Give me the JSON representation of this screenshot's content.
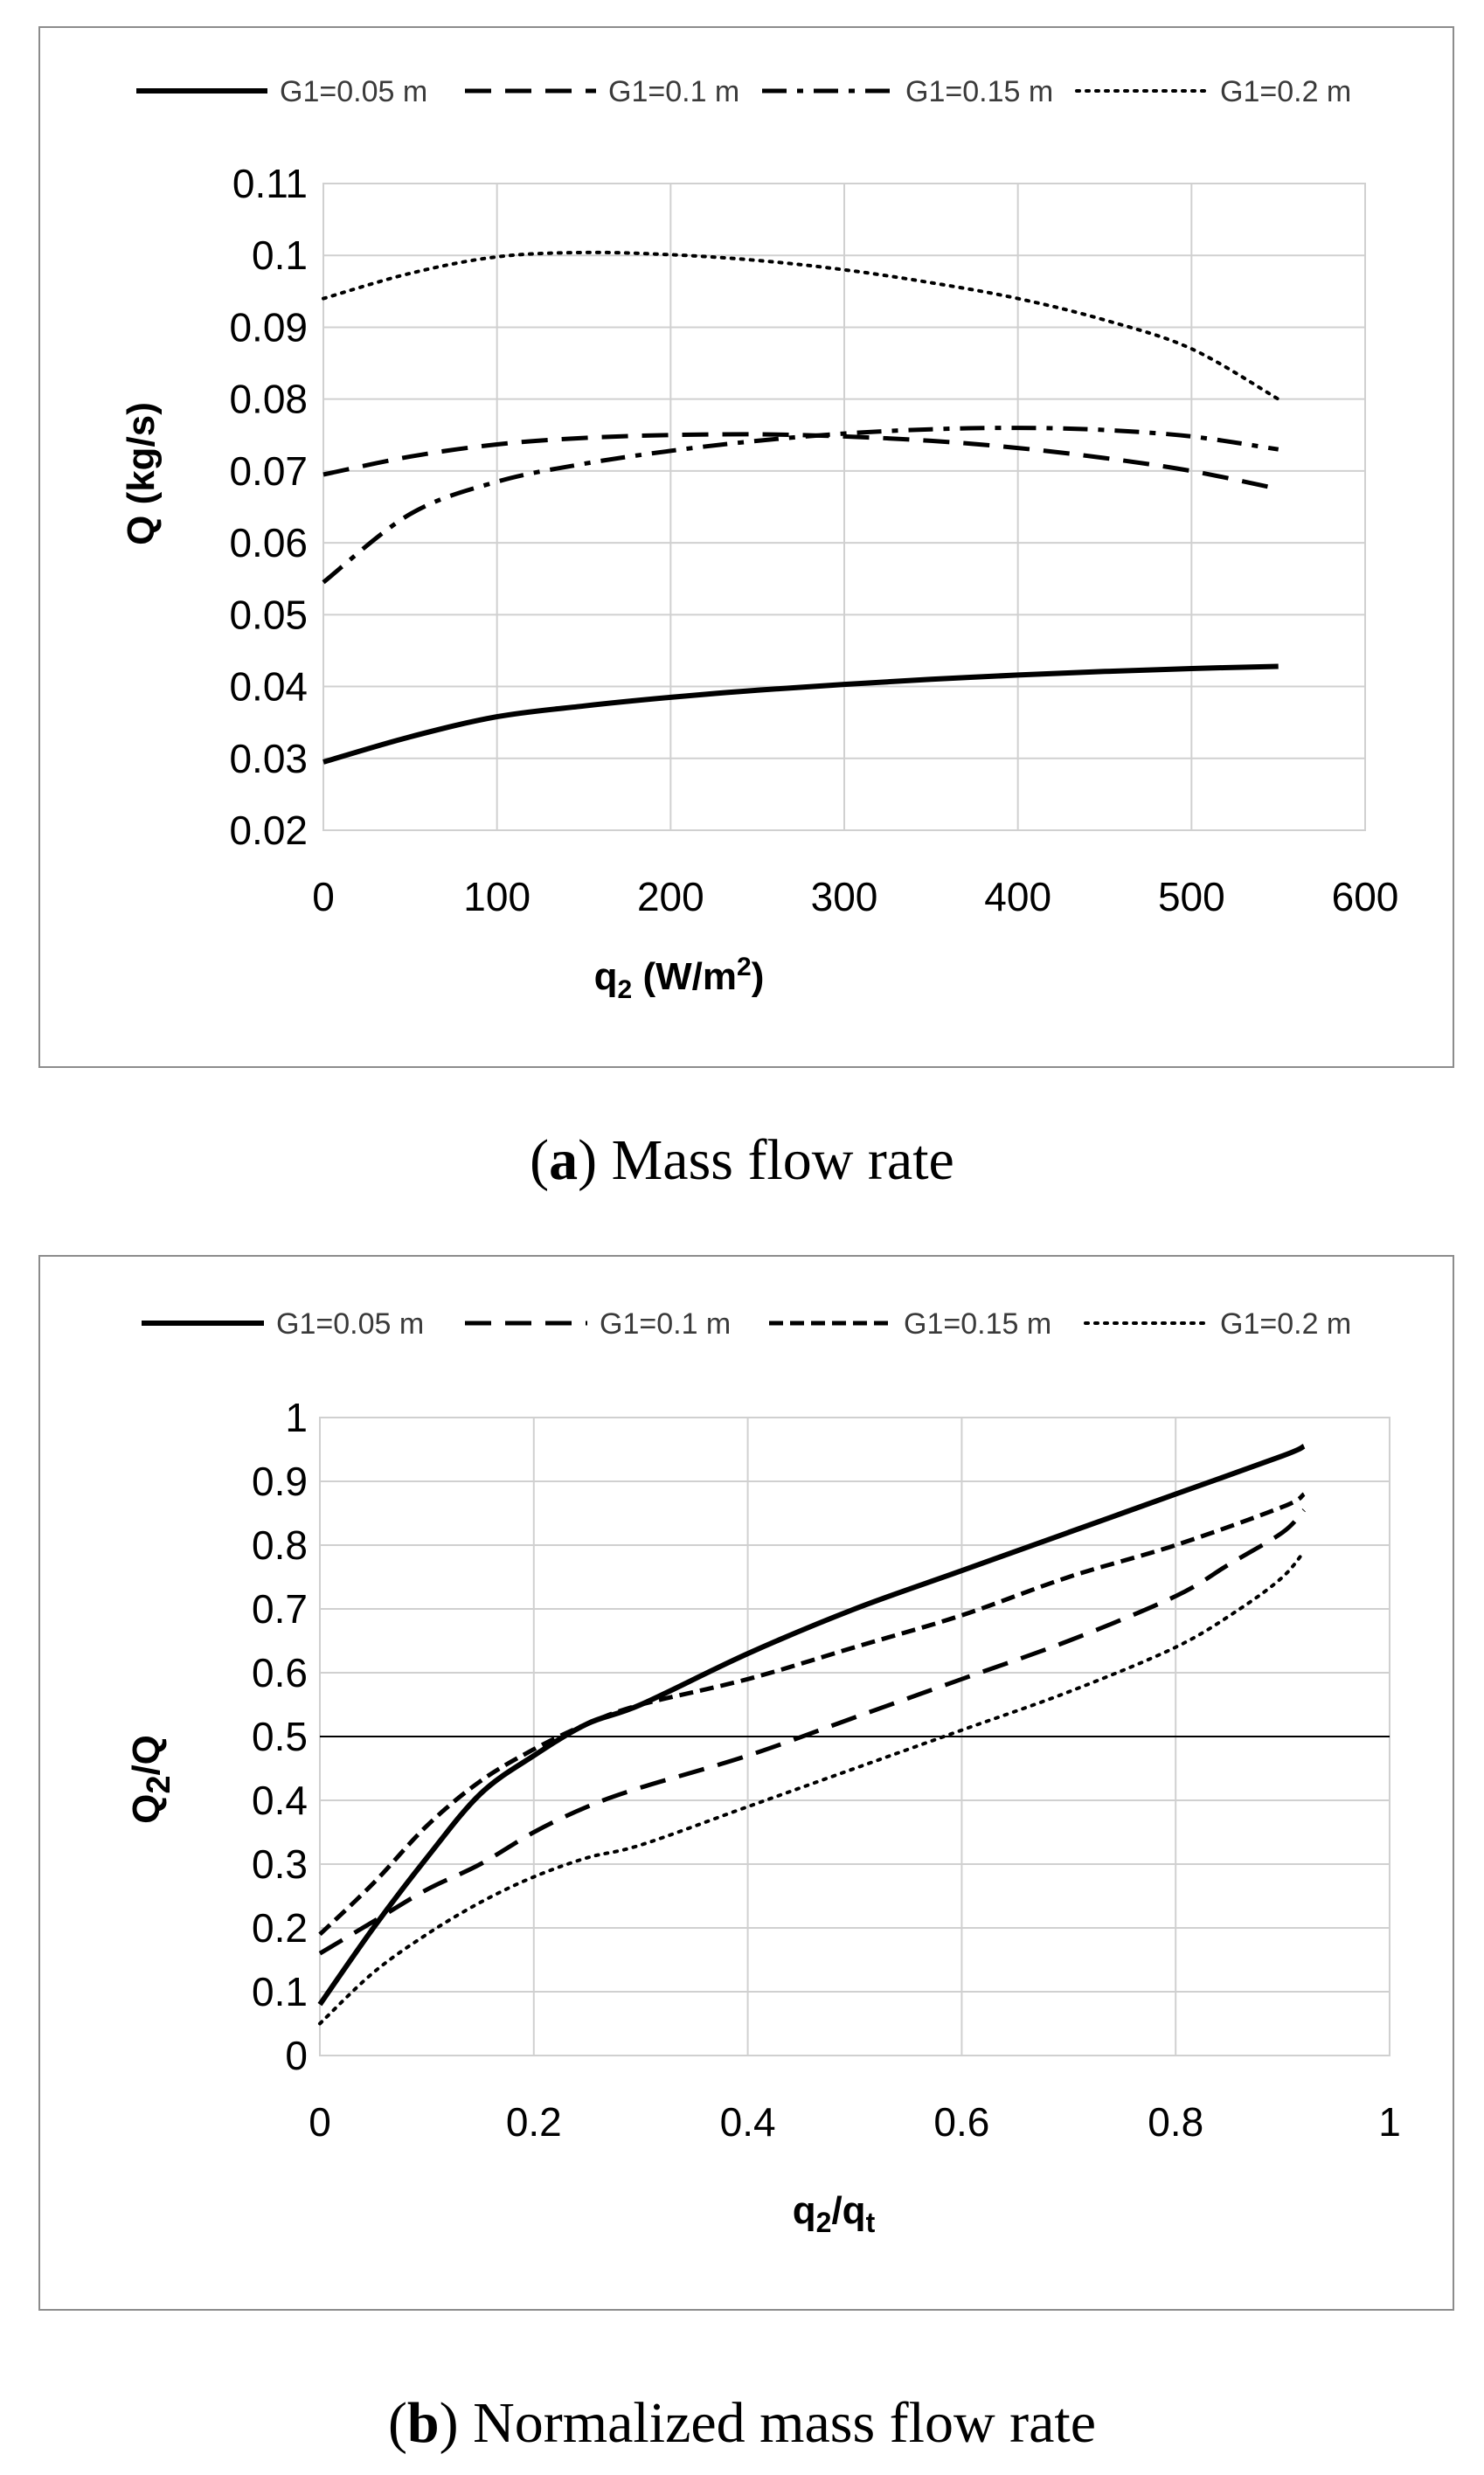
{
  "chart_data": [
    {
      "type": "line",
      "panel_label": "a",
      "caption_text": "Mass flow rate",
      "ylabel": "Q (kg/s)",
      "xlabel_main": "q",
      "xlabel_sub": "2",
      "xlabel_tail": " (W/m",
      "xlabel_sup": "2",
      "xlabel_close": ")",
      "xlim": [
        0,
        600
      ],
      "ylim": [
        0.02,
        0.11
      ],
      "xticks": [
        "0",
        "100",
        "200",
        "300",
        "400",
        "500",
        "600"
      ],
      "yticks": [
        "0.02",
        "0.03",
        "0.04",
        "0.05",
        "0.06",
        "0.07",
        "0.08",
        "0.09",
        "0.1",
        "0.11"
      ],
      "legend_position": "top",
      "series": [
        {
          "name": "G1=0.05 m",
          "style": "solid",
          "color": "#000000",
          "x": [
            0,
            50,
            100,
            150,
            200,
            250,
            300,
            350,
            400,
            450,
            500,
            550
          ],
          "y": [
            0.0295,
            0.033,
            0.0358,
            0.0373,
            0.0385,
            0.0395,
            0.0403,
            0.041,
            0.0416,
            0.0421,
            0.0425,
            0.0428
          ]
        },
        {
          "name": "G1=0.1 m",
          "style": "dash",
          "color": "#000000",
          "x": [
            0,
            50,
            100,
            150,
            200,
            250,
            300,
            350,
            400,
            450,
            500,
            550
          ],
          "y": [
            0.0695,
            0.072,
            0.0737,
            0.0746,
            0.075,
            0.0751,
            0.0748,
            0.0742,
            0.0732,
            0.0718,
            0.07,
            0.0675
          ]
        },
        {
          "name": "G1=0.15 m",
          "style": "dashdot",
          "color": "#000000",
          "x": [
            0,
            50,
            100,
            150,
            200,
            250,
            300,
            350,
            400,
            450,
            500,
            550
          ],
          "y": [
            0.0545,
            0.064,
            0.0685,
            0.071,
            0.0728,
            0.0742,
            0.0752,
            0.0758,
            0.076,
            0.0757,
            0.0748,
            0.073
          ]
        },
        {
          "name": "G1=0.2 m",
          "style": "dot",
          "color": "#000000",
          "x": [
            0,
            50,
            100,
            150,
            200,
            250,
            300,
            350,
            400,
            450,
            500,
            550
          ],
          "y": [
            0.094,
            0.0975,
            0.0998,
            0.1004,
            0.1001,
            0.0993,
            0.098,
            0.0962,
            0.094,
            0.091,
            0.087,
            0.08
          ]
        }
      ]
    },
    {
      "type": "line",
      "panel_label": "b",
      "caption_text": "Normalized mass flow rate",
      "ylabel_main": "Q",
      "ylabel_sub": "2",
      "ylabel_tail": "/Q",
      "xlabel_main": "q",
      "xlabel_sub": "2",
      "xlabel_mid": "/q",
      "xlabel_sub2": "t",
      "xlim": [
        0,
        1
      ],
      "ylim": [
        0,
        1
      ],
      "xticks": [
        "0",
        "0.2",
        "0.4",
        "0.6",
        "0.8",
        "1"
      ],
      "yticks": [
        "0",
        "0.1",
        "0.2",
        "0.3",
        "0.4",
        "0.5",
        "0.6",
        "0.7",
        "0.8",
        "0.9",
        "1"
      ],
      "reference_line_y": 0.5,
      "legend_position": "top",
      "series": [
        {
          "name": "G1=0.05 m",
          "style": "solid",
          "color": "#000000",
          "x": [
            0,
            0.05,
            0.1,
            0.15,
            0.2,
            0.25,
            0.3,
            0.4,
            0.5,
            0.6,
            0.7,
            0.8,
            0.9,
            0.92
          ],
          "y": [
            0.08,
            0.2,
            0.31,
            0.41,
            0.47,
            0.52,
            0.55,
            0.63,
            0.7,
            0.76,
            0.82,
            0.88,
            0.94,
            0.955
          ]
        },
        {
          "name": "G1=0.1 m",
          "style": "dash",
          "color": "#000000",
          "x": [
            0,
            0.05,
            0.1,
            0.15,
            0.2,
            0.25,
            0.3,
            0.4,
            0.5,
            0.6,
            0.7,
            0.8,
            0.85,
            0.9,
            0.92
          ],
          "y": [
            0.16,
            0.21,
            0.26,
            0.3,
            0.35,
            0.39,
            0.42,
            0.47,
            0.53,
            0.59,
            0.65,
            0.72,
            0.77,
            0.82,
            0.855
          ]
        },
        {
          "name": "G1=0.15 m",
          "style": "shortdash",
          "color": "#000000",
          "x": [
            0,
            0.05,
            0.1,
            0.15,
            0.2,
            0.25,
            0.3,
            0.4,
            0.5,
            0.6,
            0.7,
            0.8,
            0.9,
            0.92
          ],
          "y": [
            0.19,
            0.27,
            0.36,
            0.43,
            0.48,
            0.52,
            0.55,
            0.59,
            0.64,
            0.69,
            0.75,
            0.8,
            0.86,
            0.88
          ]
        },
        {
          "name": "G1=0.2 m",
          "style": "dot",
          "color": "#000000",
          "x": [
            0,
            0.05,
            0.1,
            0.15,
            0.2,
            0.25,
            0.3,
            0.4,
            0.5,
            0.6,
            0.7,
            0.8,
            0.86,
            0.9,
            0.92
          ],
          "y": [
            0.05,
            0.13,
            0.19,
            0.24,
            0.28,
            0.31,
            0.33,
            0.39,
            0.45,
            0.51,
            0.57,
            0.64,
            0.7,
            0.75,
            0.79
          ]
        }
      ]
    }
  ]
}
